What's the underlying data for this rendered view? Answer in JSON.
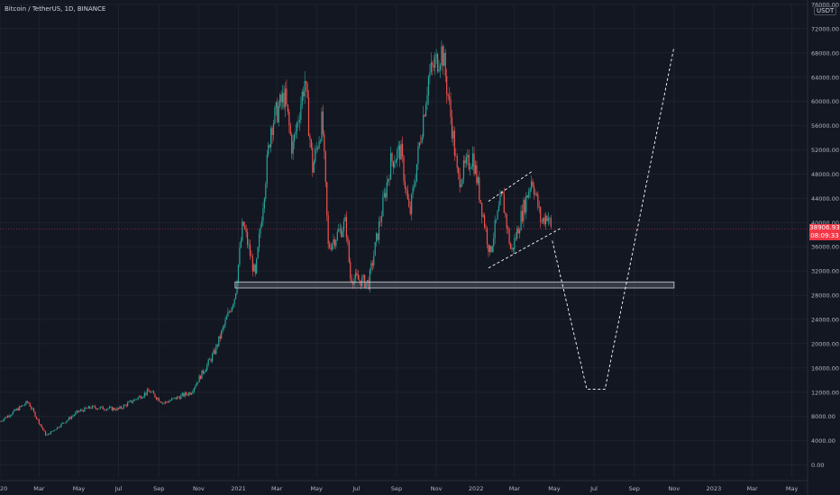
{
  "header": {
    "title": "Bitcoin / TetherUS, 1D, BINANCE",
    "currency": "USDT"
  },
  "last_price": {
    "value": "38906.93",
    "countdown": "08:09:33",
    "color": "#f23645"
  },
  "colors": {
    "background": "#131722",
    "up": "#26a69a",
    "down": "#ef5350",
    "annotation": "#ffffff",
    "grid": "#1e222d"
  },
  "chart_data": {
    "type": "candlestick",
    "title": "Bitcoin / TetherUS, 1D, BINANCE",
    "x_type": "date",
    "xlim": [
      "2020-01-01",
      "2023-05-25"
    ],
    "ylim": [
      -2000,
      76000
    ],
    "grid": true,
    "y_ticks": [
      "76000.00",
      "72000.00",
      "68000.00",
      "64000.00",
      "60000.00",
      "56000.00",
      "52000.00",
      "48000.00",
      "44000.00",
      "40000.00",
      "36000.00",
      "32000.00",
      "28000.00",
      "24000.00",
      "20000.00",
      "16000.00",
      "12000.00",
      "8000.00",
      "4000.00",
      "0.00"
    ],
    "x_ticks": [
      {
        "label": "2020",
        "date": "2020-01-01"
      },
      {
        "label": "Mar",
        "date": "2020-03-01"
      },
      {
        "label": "May",
        "date": "2020-05-01"
      },
      {
        "label": "Jul",
        "date": "2020-07-01"
      },
      {
        "label": "Sep",
        "date": "2020-09-01"
      },
      {
        "label": "Nov",
        "date": "2020-11-01"
      },
      {
        "label": "2021",
        "date": "2021-01-01"
      },
      {
        "label": "Mar",
        "date": "2021-03-01"
      },
      {
        "label": "May",
        "date": "2021-05-01"
      },
      {
        "label": "Jul",
        "date": "2021-07-01"
      },
      {
        "label": "Sep",
        "date": "2021-09-01"
      },
      {
        "label": "Nov",
        "date": "2021-11-01"
      },
      {
        "label": "2022",
        "date": "2022-01-01"
      },
      {
        "label": "Mar",
        "date": "2022-03-01"
      },
      {
        "label": "May",
        "date": "2022-05-01"
      },
      {
        "label": "Jul",
        "date": "2022-07-01"
      },
      {
        "label": "Sep",
        "date": "2022-09-01"
      },
      {
        "label": "Nov",
        "date": "2022-11-01"
      },
      {
        "label": "2023",
        "date": "2023-01-01"
      },
      {
        "label": "Mar",
        "date": "2023-03-01"
      },
      {
        "label": "May",
        "date": "2023-05-01"
      }
    ],
    "price_path": [
      [
        "2020-01-01",
        7200
      ],
      [
        "2020-02-13",
        10400
      ],
      [
        "2020-03-12",
        4800
      ],
      [
        "2020-04-30",
        8800
      ],
      [
        "2020-05-20",
        9500
      ],
      [
        "2020-07-01",
        9200
      ],
      [
        "2020-08-17",
        12200
      ],
      [
        "2020-09-08",
        10200
      ],
      [
        "2020-10-20",
        12000
      ],
      [
        "2020-11-25",
        18500
      ],
      [
        "2020-12-27",
        28000
      ],
      [
        "2021-01-08",
        40000
      ],
      [
        "2021-01-27",
        31000
      ],
      [
        "2021-02-20",
        56000
      ],
      [
        "2021-03-13",
        61000
      ],
      [
        "2021-03-25",
        52000
      ],
      [
        "2021-04-13",
        63500
      ],
      [
        "2021-04-25",
        49000
      ],
      [
        "2021-05-10",
        57000
      ],
      [
        "2021-05-19",
        36000
      ],
      [
        "2021-06-15",
        40000
      ],
      [
        "2021-06-22",
        31000
      ],
      [
        "2021-07-20",
        30000
      ],
      [
        "2021-08-23",
        50000
      ],
      [
        "2021-09-07",
        52000
      ],
      [
        "2021-09-21",
        41000
      ],
      [
        "2021-10-20",
        64000
      ],
      [
        "2021-11-10",
        68500
      ],
      [
        "2021-11-26",
        55000
      ],
      [
        "2021-12-04",
        47000
      ],
      [
        "2021-12-27",
        51000
      ],
      [
        "2022-01-22",
        35000
      ],
      [
        "2022-02-10",
        44500
      ],
      [
        "2022-02-24",
        35000
      ],
      [
        "2022-03-28",
        47500
      ],
      [
        "2022-04-11",
        40000
      ],
      [
        "2022-04-21",
        41500
      ],
      [
        "2022-04-26",
        38900
      ]
    ],
    "annotations": {
      "support_zone": {
        "x": [
          "2020-12-27",
          "2022-11-01"
        ],
        "y": [
          29200,
          30200
        ]
      },
      "channel_upper": [
        [
          "2022-01-20",
          43500
        ],
        [
          "2022-03-30",
          48600
        ]
      ],
      "channel_lower": [
        [
          "2022-01-20",
          32500
        ],
        [
          "2022-05-10",
          39000
        ]
      ],
      "projection": [
        [
          "2022-04-28",
          37000
        ],
        [
          "2022-06-20",
          12500
        ],
        [
          "2022-07-18",
          12500
        ],
        [
          "2022-11-01",
          69000
        ]
      ]
    }
  }
}
